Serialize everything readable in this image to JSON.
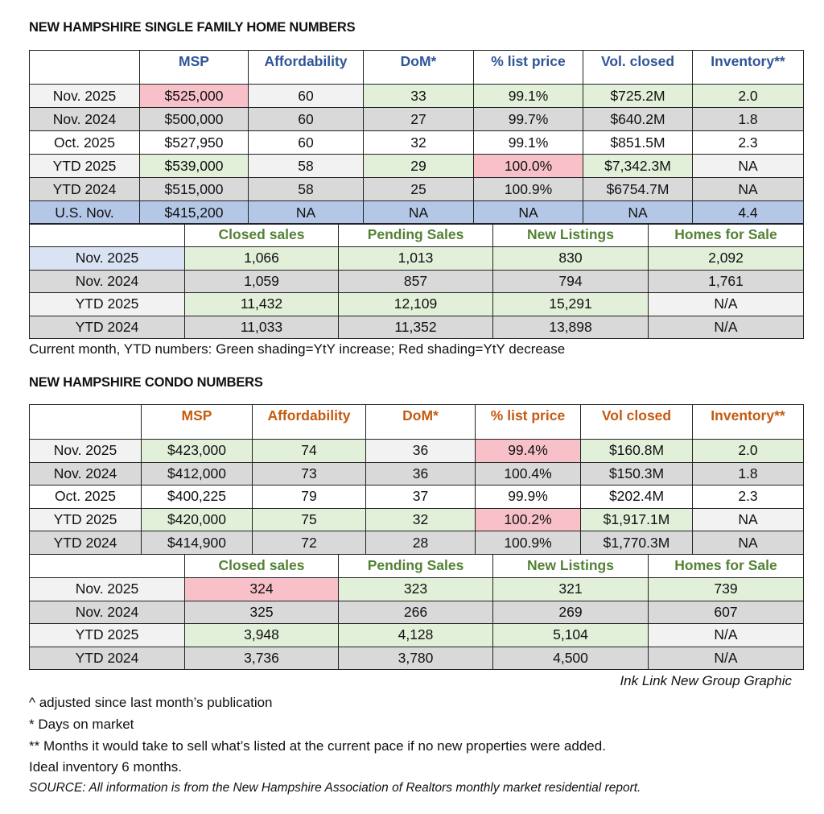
{
  "shade_colors": {
    "g": "#e2efd9",
    "r": "#f8c1c9",
    "l": "#f2f2f2",
    "d": "#d9d9d9",
    "w": "#ffffff",
    "b": "#b4c7e7",
    "lb": "#dae3f3"
  },
  "header_colors": {
    "single_family": "#2f5597",
    "condo": "#c55a11",
    "lower": "#548235"
  },
  "single_family": {
    "title": "NEW HAMPSHIRE SINGLE FAMILY HOME NUMBERS",
    "main": {
      "headers": [
        "",
        "MSP",
        "Affordability",
        "DoM*",
        "% list price",
        "Vol. closed",
        "Inventory**"
      ],
      "rows": [
        {
          "cells": [
            "Nov. 2025",
            "$525,000",
            "60",
            "33",
            "99.1%",
            "$725.2M",
            "2.0"
          ],
          "shade": [
            "l",
            "r",
            "l",
            "g",
            "g",
            "g",
            "g"
          ]
        },
        {
          "cells": [
            "Nov. 2024",
            "$500,000",
            "60",
            "27",
            "99.7%",
            "$640.2M",
            "1.8"
          ],
          "shade": [
            "d",
            "d",
            "d",
            "d",
            "d",
            "d",
            "d"
          ]
        },
        {
          "cells": [
            "Oct. 2025",
            "$527,950",
            "60",
            "32",
            "99.1%",
            "$851.5M",
            "2.3"
          ],
          "shade": [
            "w",
            "w",
            "w",
            "w",
            "w",
            "w",
            "w"
          ]
        },
        {
          "cells": [
            "YTD 2025",
            "$539,000",
            "58",
            "29",
            "100.0%",
            "$7,342.3M",
            "NA"
          ],
          "shade": [
            "l",
            "g",
            "l",
            "g",
            "r",
            "g",
            "l"
          ]
        },
        {
          "cells": [
            "YTD 2024",
            "$515,000",
            "58",
            "25",
            "100.9%",
            "$6754.7M",
            "NA"
          ],
          "shade": [
            "d",
            "d",
            "d",
            "d",
            "d",
            "d",
            "d"
          ]
        },
        {
          "cells": [
            "U.S. Nov.",
            "$415,200",
            "NA",
            "NA",
            "NA",
            "NA",
            "4.4"
          ],
          "shade": [
            "b",
            "b",
            "b",
            "b",
            "b",
            "b",
            "b"
          ]
        }
      ]
    },
    "sales": {
      "headers": [
        "",
        "Closed sales",
        "Pending Sales",
        "New Listings",
        "Homes for Sale"
      ],
      "rows": [
        {
          "cells": [
            "Nov. 2025",
            "1,066",
            "1,013",
            "830",
            "2,092"
          ],
          "shade": [
            "lb",
            "g",
            "g",
            "g",
            "g"
          ]
        },
        {
          "cells": [
            "Nov. 2024",
            "1,059",
            "857",
            "794",
            "1,761"
          ],
          "shade": [
            "d",
            "d",
            "d",
            "d",
            "d"
          ]
        },
        {
          "cells": [
            "YTD 2025",
            "11,432",
            "12,109",
            "15,291",
            "N/A"
          ],
          "shade": [
            "l",
            "g",
            "g",
            "g",
            "l"
          ]
        },
        {
          "cells": [
            "YTD 2024",
            "11,033",
            "11,352",
            "13,898",
            "N/A"
          ],
          "shade": [
            "d",
            "d",
            "d",
            "d",
            "d"
          ]
        }
      ]
    },
    "note": "Current month, YTD numbers: Green shading=YtY increase; Red shading=YtY decrease"
  },
  "condo": {
    "title": "NEW HAMPSHIRE CONDO NUMBERS",
    "main": {
      "headers": [
        "",
        "MSP",
        "Affordability",
        "DoM*",
        "% list price",
        "Vol closed",
        "Inventory**"
      ],
      "rows": [
        {
          "cells": [
            "Nov. 2025",
            "$423,000",
            "74",
            "36",
            "99.4%",
            "$160.8M",
            "2.0"
          ],
          "shade": [
            "l",
            "g",
            "g",
            "l",
            "r",
            "g",
            "g"
          ]
        },
        {
          "cells": [
            "Nov. 2024",
            "$412,000",
            "73",
            "36",
            "100.4%",
            "$150.3M",
            "1.8"
          ],
          "shade": [
            "d",
            "d",
            "d",
            "d",
            "d",
            "d",
            "d"
          ]
        },
        {
          "cells": [
            "Oct. 2025",
            "$400,225",
            "79",
            "37",
            "99.9%",
            "$202.4M",
            "2.3"
          ],
          "shade": [
            "w",
            "w",
            "w",
            "w",
            "w",
            "w",
            "w"
          ]
        },
        {
          "cells": [
            "YTD 2025",
            "$420,000",
            "75",
            "32",
            "100.2%",
            "$1,917.1M",
            "NA"
          ],
          "shade": [
            "l",
            "g",
            "g",
            "g",
            "r",
            "g",
            "l"
          ]
        },
        {
          "cells": [
            "YTD 2024",
            "$414,900",
            "72",
            "28",
            "100.9%",
            "$1,770.3M",
            "NA"
          ],
          "shade": [
            "d",
            "d",
            "d",
            "d",
            "d",
            "d",
            "d"
          ]
        }
      ]
    },
    "sales": {
      "headers": [
        "",
        "Closed sales",
        "Pending Sales",
        "New Listings",
        "Homes for Sale"
      ],
      "rows": [
        {
          "cells": [
            "Nov. 2025",
            "324",
            "323",
            "321",
            "739"
          ],
          "shade": [
            "l",
            "r",
            "g",
            "g",
            "g"
          ]
        },
        {
          "cells": [
            "Nov. 2024",
            "325",
            "266",
            "269",
            "607"
          ],
          "shade": [
            "d",
            "d",
            "d",
            "d",
            "d"
          ]
        },
        {
          "cells": [
            "YTD 2025",
            "3,948",
            "4,128",
            "5,104",
            "N/A"
          ],
          "shade": [
            "l",
            "g",
            "g",
            "g",
            "l"
          ]
        },
        {
          "cells": [
            "YTD 2024",
            "3,736",
            "3,780",
            "4,500",
            "N/A"
          ],
          "shade": [
            "d",
            "d",
            "d",
            "d",
            "d"
          ]
        }
      ]
    }
  },
  "credit": "Ink Link New Group Graphic",
  "footnotes": [
    "^ adjusted since last month’s publication",
    "* Days on market",
    "** Months it would take to sell what’s listed at the current pace if no new properties were added.",
    "Ideal inventory 6 months."
  ],
  "source": "SOURCE: All information is from the New Hampshire Association of Realtors monthly market residential report."
}
